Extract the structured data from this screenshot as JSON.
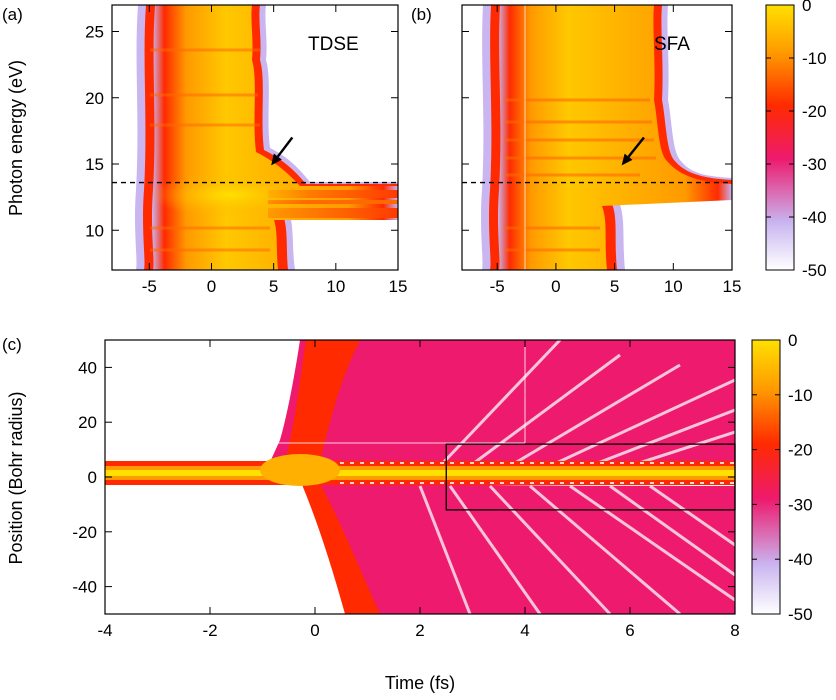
{
  "chart_data": [
    {
      "panel": "(a)",
      "type": "heatmap",
      "title": "TDSE",
      "xlabel": "",
      "ylabel": "Photon energy (eV)",
      "xlim": [
        -8,
        15
      ],
      "ylim": [
        7,
        27
      ],
      "xticks": [
        -5,
        0,
        5,
        10,
        15
      ],
      "yticks": [
        10,
        15,
        20,
        25
      ],
      "dashed_line_y": 13.6,
      "arrow": {
        "from": [
          6.5,
          17.0
        ],
        "to": [
          4.8,
          14.9
        ]
      }
    },
    {
      "panel": "(b)",
      "type": "heatmap",
      "title": "SFA",
      "xlabel": "",
      "ylabel": "",
      "xlim": [
        -8,
        15
      ],
      "ylim": [
        7,
        27
      ],
      "xticks": [
        -5,
        0,
        5,
        10,
        15
      ],
      "yticks": [
        10,
        15,
        20,
        25
      ],
      "dashed_line_y": 13.6,
      "arrow": {
        "from": [
          7.5,
          17.0
        ],
        "to": [
          5.6,
          14.9
        ]
      },
      "colorbar": {
        "min": -50,
        "max": 0,
        "ticks": [
          0,
          -10,
          -20,
          -30,
          -40,
          -50
        ]
      }
    },
    {
      "panel": "(c)",
      "type": "heatmap",
      "title": "",
      "xlabel": "Time (fs)",
      "ylabel": "Position (Bohr radius)",
      "xlim": [
        -4,
        8
      ],
      "ylim": [
        -50,
        50
      ],
      "xticks": [
        -4,
        -2,
        0,
        2,
        4,
        6,
        8
      ],
      "yticks": [
        -40,
        -20,
        0,
        20,
        40
      ],
      "highlight_box": {
        "x": [
          2.5,
          8
        ],
        "y": [
          -12,
          12
        ]
      },
      "colorbar": {
        "min": -50,
        "max": 0,
        "ticks": [
          0,
          -10,
          -20,
          -30,
          -40,
          -50
        ]
      }
    }
  ],
  "colors": {
    "colormap": [
      "#ffffff",
      "#c9b5f0",
      "#ee1a6e",
      "#ff2a00",
      "#ff9a00",
      "#ffe000"
    ]
  }
}
